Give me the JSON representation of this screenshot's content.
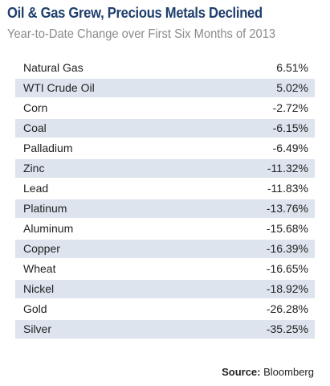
{
  "title": "Oil & Gas Grew, Precious Metals Declined",
  "subtitle": "Year-to-Date Change over First Six Months  of 2013",
  "source_label": "Source:",
  "source_value": "Bloomberg",
  "chart_data": {
    "type": "table",
    "title": "Oil & Gas Grew, Precious Metals Declined",
    "subtitle": "Year-to-Date Change over First Six Months  of 2013",
    "rows": [
      {
        "name": "Natural Gas",
        "value": "6.51%"
      },
      {
        "name": "WTI Crude Oil",
        "value": "5.02%"
      },
      {
        "name": "Corn",
        "value": "-2.72%"
      },
      {
        "name": "Coal",
        "value": "-6.15%"
      },
      {
        "name": "Palladium",
        "value": "-6.49%"
      },
      {
        "name": "Zinc",
        "value": "-11.32%"
      },
      {
        "name": "Lead",
        "value": "-11.83%"
      },
      {
        "name": "Platinum",
        "value": "-13.76%"
      },
      {
        "name": "Aluminum",
        "value": "-15.68%"
      },
      {
        "name": "Copper",
        "value": "-16.39%"
      },
      {
        "name": "Wheat",
        "value": "-16.65%"
      },
      {
        "name": "Nickel",
        "value": "-18.92%"
      },
      {
        "name": "Gold",
        "value": "-26.28%"
      },
      {
        "name": "Silver",
        "value": "-35.25%"
      }
    ]
  }
}
